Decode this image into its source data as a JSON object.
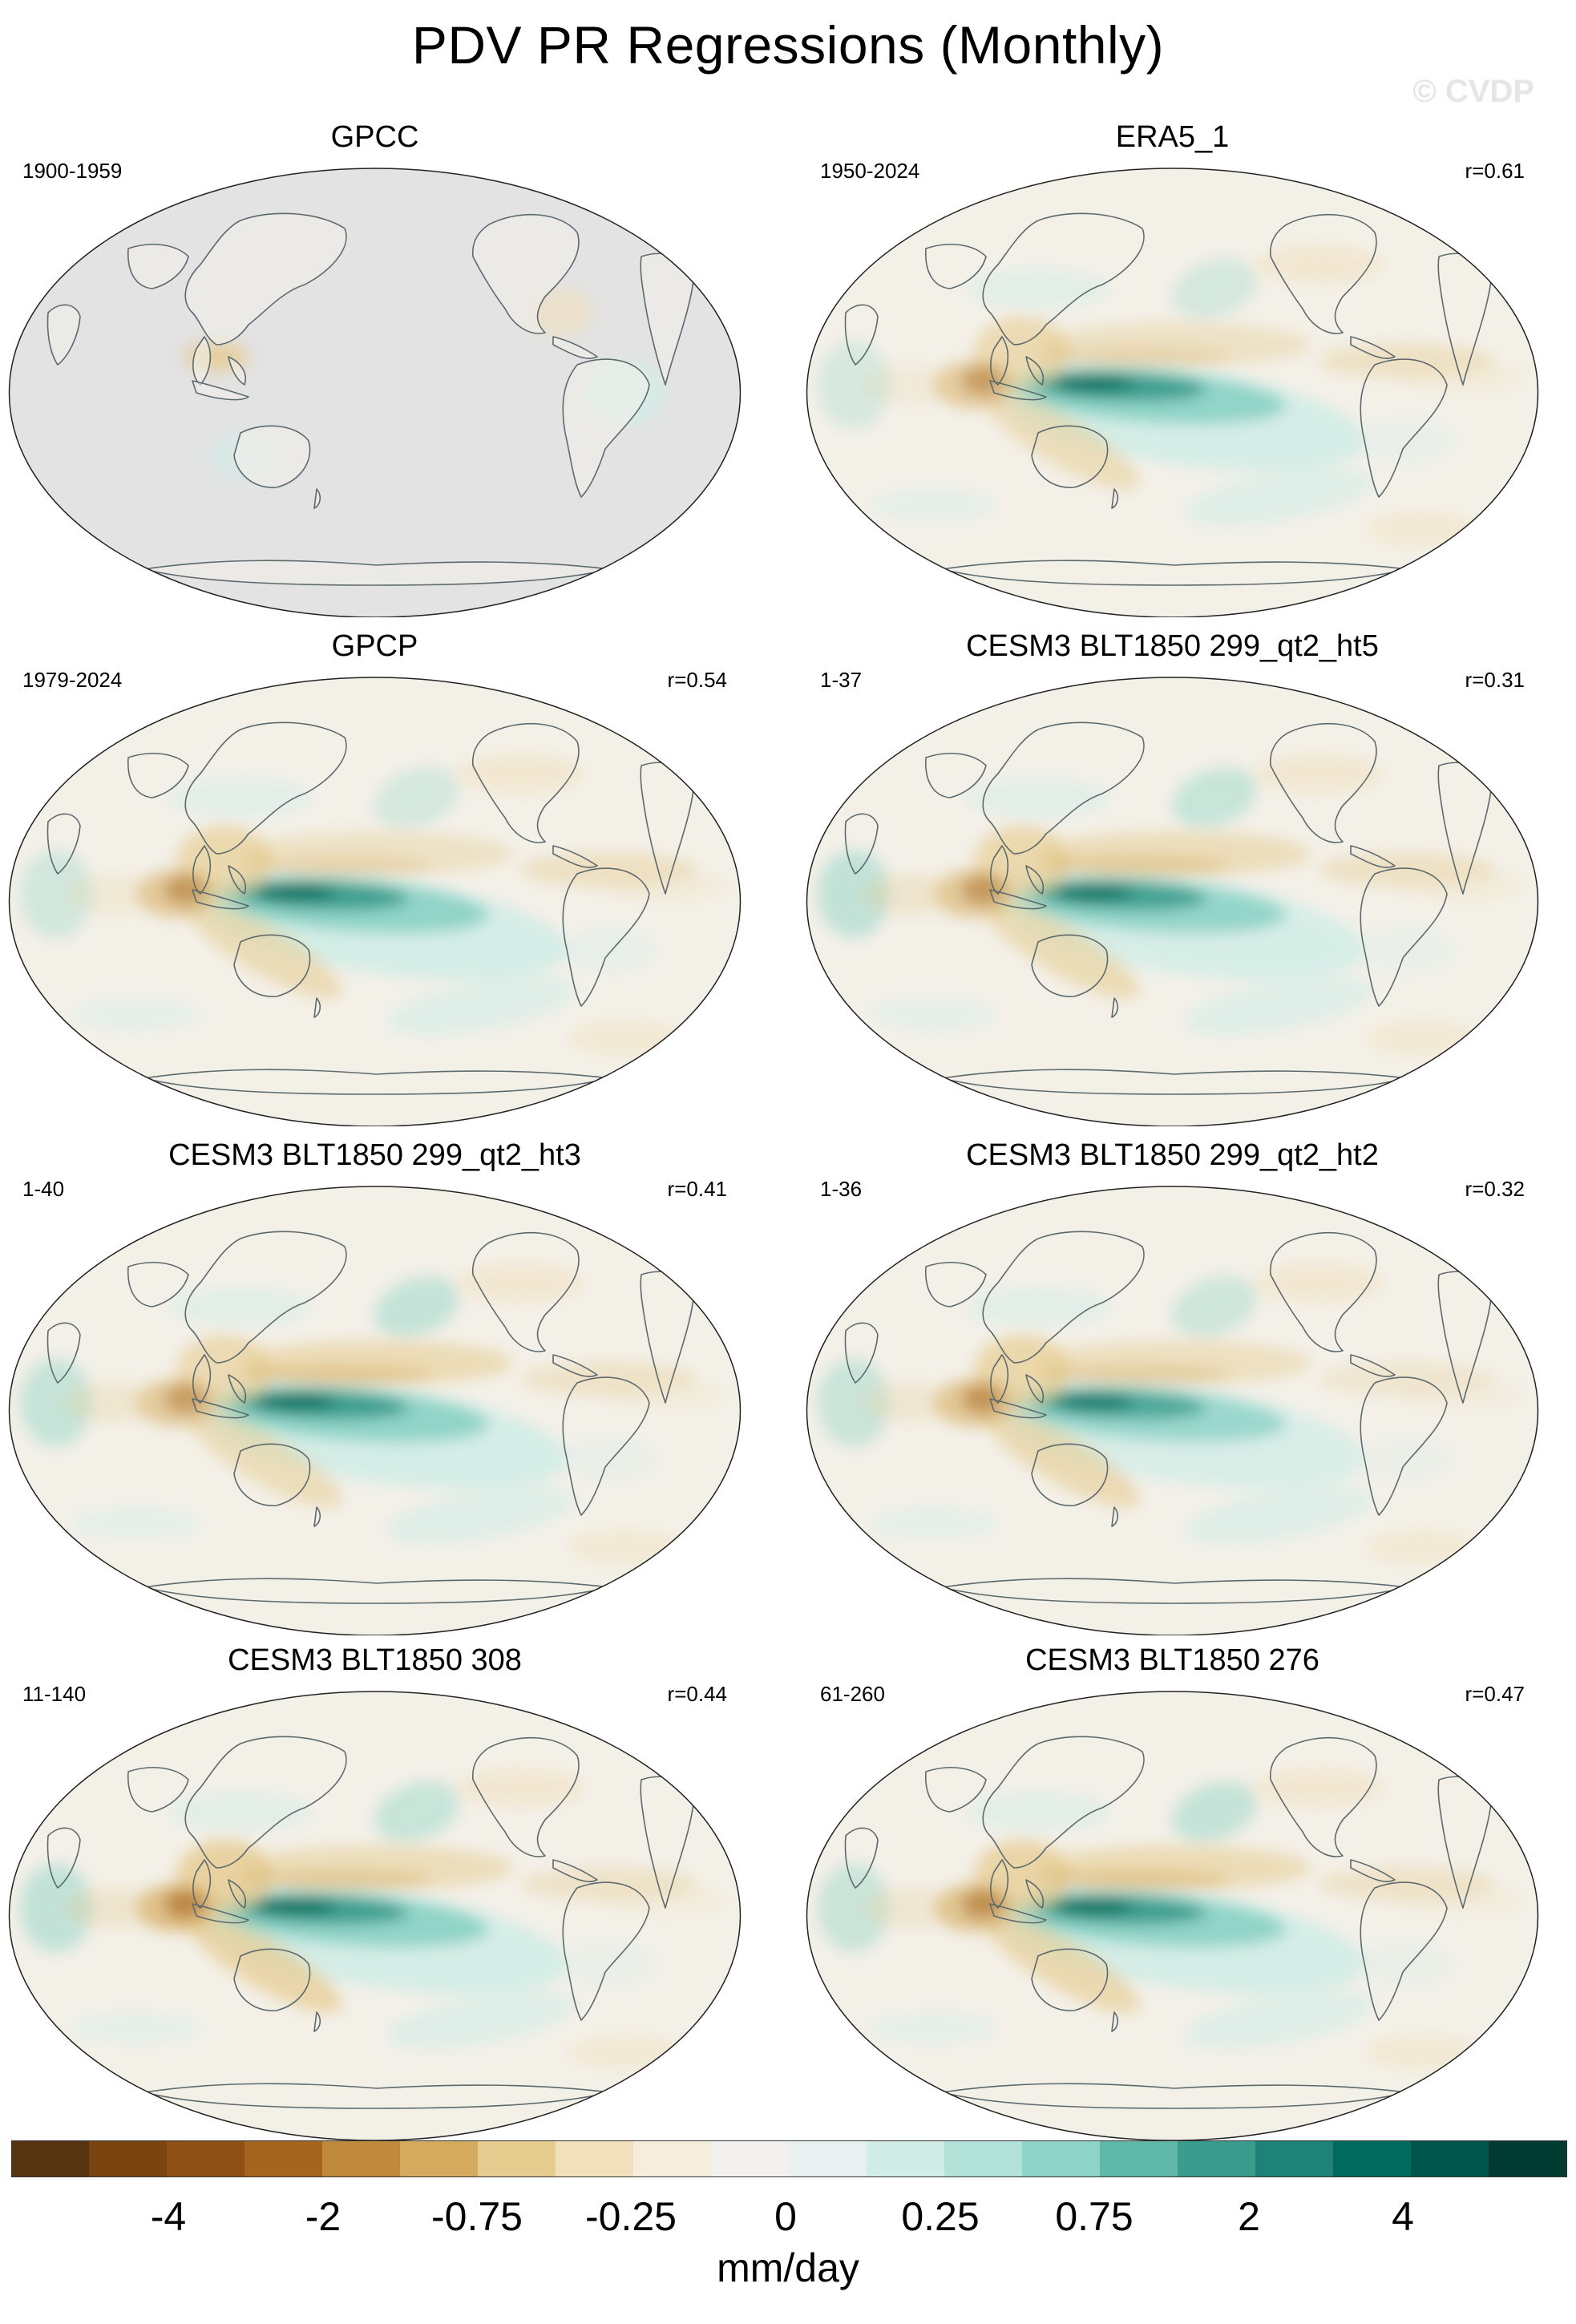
{
  "title": "PDV PR Regressions (Monthly)",
  "watermark": "© CVDP",
  "panels": [
    {
      "title": "GPCC",
      "period": "1900-1959",
      "r": "",
      "coverage": "land-only",
      "pattern": {
        "pacific_wedge": 0.0,
        "maritime_dry": 0.2,
        "north_pacific": 0.0,
        "indian": 0.0,
        "atlantic": 0.0
      }
    },
    {
      "title": "ERA5_1",
      "period": "1950-2024",
      "r": "r=0.61",
      "coverage": "global",
      "pattern": {
        "pacific_wedge": 1.0,
        "maritime_dry": 0.75,
        "north_pacific": 0.5,
        "indian": 0.35,
        "atlantic": 0.5
      }
    },
    {
      "title": "GPCP",
      "period": "1979-2024",
      "r": "r=0.54",
      "coverage": "global",
      "pattern": {
        "pacific_wedge": 1.0,
        "maritime_dry": 0.8,
        "north_pacific": 0.5,
        "indian": 0.4,
        "atlantic": 0.55
      }
    },
    {
      "title": "CESM3 BLT1850 299_qt2_ht5",
      "period": "1-37",
      "r": "r=0.31",
      "coverage": "global",
      "pattern": {
        "pacific_wedge": 0.95,
        "maritime_dry": 0.8,
        "north_pacific": 0.7,
        "indian": 0.6,
        "atlantic": 0.5
      }
    },
    {
      "title": "CESM3 BLT1850 299_qt2_ht3",
      "period": "1-40",
      "r": "r=0.41",
      "coverage": "global",
      "pattern": {
        "pacific_wedge": 1.0,
        "maritime_dry": 0.75,
        "north_pacific": 0.75,
        "indian": 0.55,
        "atlantic": 0.45
      }
    },
    {
      "title": "CESM3 BLT1850 299_qt2_ht2",
      "period": "1-36",
      "r": "r=0.32",
      "coverage": "global",
      "pattern": {
        "pacific_wedge": 0.85,
        "maritime_dry": 0.85,
        "north_pacific": 0.6,
        "indian": 0.5,
        "atlantic": 0.35
      }
    },
    {
      "title": "CESM3 BLT1850 308",
      "period": "11-140",
      "r": "r=0.44",
      "coverage": "global",
      "pattern": {
        "pacific_wedge": 1.0,
        "maritime_dry": 1.0,
        "north_pacific": 0.7,
        "indian": 0.6,
        "atlantic": 0.45
      }
    },
    {
      "title": "CESM3 BLT1850 276",
      "period": "61-260",
      "r": "r=0.47",
      "coverage": "global",
      "pattern": {
        "pacific_wedge": 1.0,
        "maritime_dry": 0.9,
        "north_pacific": 0.75,
        "indian": 0.5,
        "atlantic": 0.45
      }
    }
  ],
  "colorbar": {
    "colors": [
      "#573410",
      "#7a4410",
      "#8e5014",
      "#a6651f",
      "#c08a3c",
      "#d4ab5e",
      "#e6cb8f",
      "#f1e0bb",
      "#f6eedd",
      "#f3f1ed",
      "#e8f1ef",
      "#d2ede7",
      "#b3e2d9",
      "#8dd3c6",
      "#5fb8a8",
      "#3a9c8d",
      "#1f8277",
      "#006b5c",
      "#00554a",
      "#003b31"
    ],
    "labels": [
      "-4",
      "-2",
      "-0.75",
      "-0.25",
      "0",
      "0.25",
      "0.75",
      "2",
      "4"
    ],
    "units": "mm/day"
  }
}
